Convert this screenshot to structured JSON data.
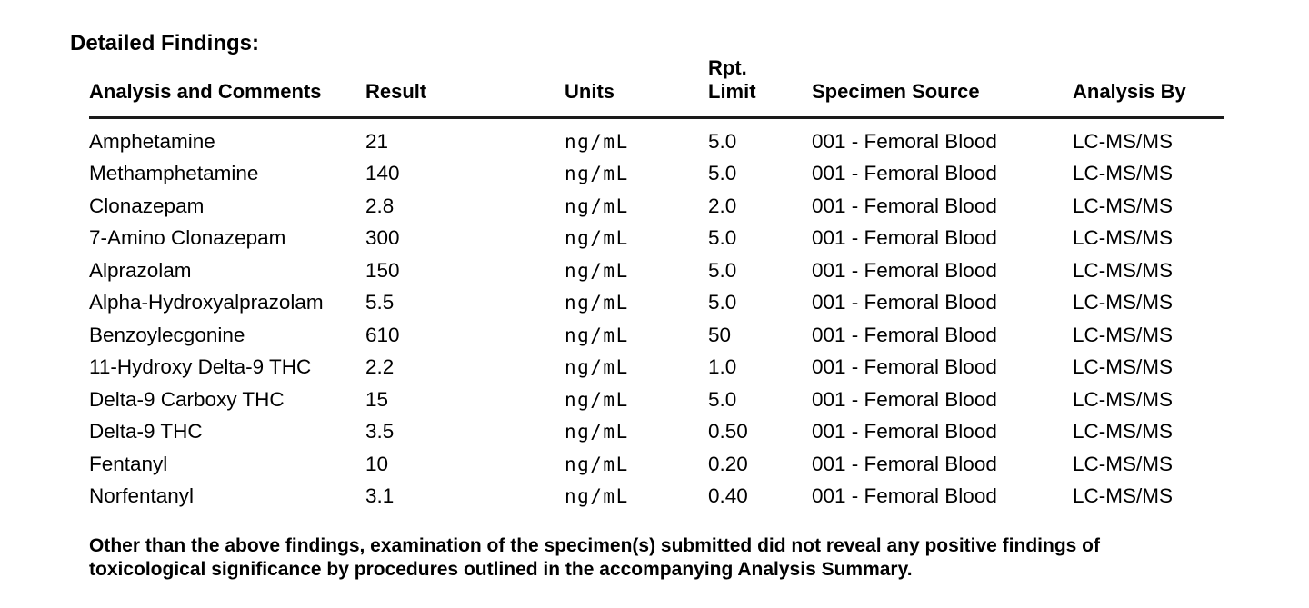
{
  "document": {
    "title": "Detailed Findings:"
  },
  "table": {
    "headers": {
      "analysis": "Analysis and Comments",
      "result": "Result",
      "units": "Units",
      "rpt_limit_line1": "Rpt.",
      "rpt_limit_line2": "Limit",
      "specimen_source": "Specimen Source",
      "analysis_by": "Analysis By"
    },
    "rows": [
      {
        "analysis": "Amphetamine",
        "result": "21",
        "units": "ng/mL",
        "rpt_limit": "5.0",
        "specimen_source": "001 - Femoral Blood",
        "analysis_by": "LC-MS/MS"
      },
      {
        "analysis": "Methamphetamine",
        "result": "140",
        "units": "ng/mL",
        "rpt_limit": "5.0",
        "specimen_source": "001 - Femoral Blood",
        "analysis_by": "LC-MS/MS"
      },
      {
        "analysis": "Clonazepam",
        "result": "2.8",
        "units": "ng/mL",
        "rpt_limit": "2.0",
        "specimen_source": "001 - Femoral Blood",
        "analysis_by": "LC-MS/MS"
      },
      {
        "analysis": "7-Amino Clonazepam",
        "result": "300",
        "units": "ng/mL",
        "rpt_limit": "5.0",
        "specimen_source": "001 - Femoral Blood",
        "analysis_by": "LC-MS/MS"
      },
      {
        "analysis": "Alprazolam",
        "result": "150",
        "units": "ng/mL",
        "rpt_limit": "5.0",
        "specimen_source": "001 - Femoral Blood",
        "analysis_by": "LC-MS/MS"
      },
      {
        "analysis": "Alpha-Hydroxyalprazolam",
        "result": "5.5",
        "units": "ng/mL",
        "rpt_limit": "5.0",
        "specimen_source": "001 - Femoral Blood",
        "analysis_by": "LC-MS/MS"
      },
      {
        "analysis": "Benzoylecgonine",
        "result": "610",
        "units": "ng/mL",
        "rpt_limit": "50",
        "specimen_source": "001 - Femoral Blood",
        "analysis_by": "LC-MS/MS"
      },
      {
        "analysis": "11-Hydroxy Delta-9 THC",
        "result": "2.2",
        "units": "ng/mL",
        "rpt_limit": "1.0",
        "specimen_source": "001 - Femoral Blood",
        "analysis_by": "LC-MS/MS"
      },
      {
        "analysis": "Delta-9 Carboxy THC",
        "result": "15",
        "units": "ng/mL",
        "rpt_limit": "5.0",
        "specimen_source": "001 - Femoral Blood",
        "analysis_by": "LC-MS/MS"
      },
      {
        "analysis": "Delta-9 THC",
        "result": "3.5",
        "units": "ng/mL",
        "rpt_limit": "0.50",
        "specimen_source": "001 - Femoral Blood",
        "analysis_by": "LC-MS/MS"
      },
      {
        "analysis": "Fentanyl",
        "result": "10",
        "units": "ng/mL",
        "rpt_limit": "0.20",
        "specimen_source": "001 - Femoral Blood",
        "analysis_by": "LC-MS/MS"
      },
      {
        "analysis": "Norfentanyl",
        "result": "3.1",
        "units": "ng/mL",
        "rpt_limit": "0.40",
        "specimen_source": "001 - Femoral Blood",
        "analysis_by": "LC-MS/MS"
      }
    ]
  },
  "footer": {
    "note_line1": "Other than the above findings, examination of the specimen(s) submitted did not reveal any positive findings of",
    "note_line2": "toxicological significance by procedures outlined in the accompanying Analysis Summary."
  },
  "colors": {
    "text": "#000000",
    "rule": "#1a1a1a",
    "background": "#ffffff"
  }
}
